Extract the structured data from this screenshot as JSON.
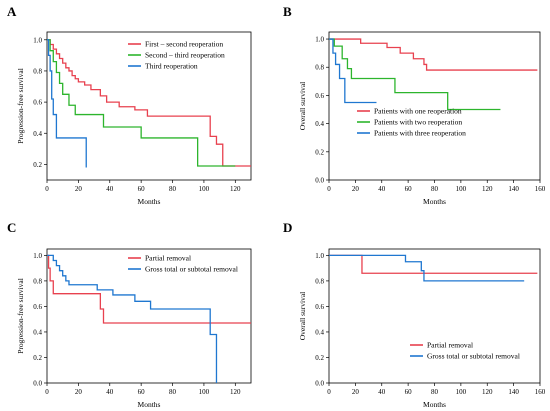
{
  "chart_data": [
    {
      "panel": "A",
      "type": "line",
      "xlabel": "Months",
      "ylabel": "Progression-free survival",
      "xlim": [
        0,
        130
      ],
      "ylim": [
        0.1,
        1.05
      ],
      "xticks": [
        0,
        20,
        40,
        60,
        80,
        100,
        120
      ],
      "yticks": [
        0.2,
        0.4,
        0.6,
        0.8,
        1.0
      ],
      "ytick_labels": [
        "0.2",
        "0.4",
        "0.6",
        "0.8",
        "1.0"
      ],
      "legend": "top-right",
      "series": [
        {
          "name": "First – second reoperation",
          "color": "#e8414f",
          "x": [
            0,
            2,
            4,
            6,
            8,
            10,
            12,
            14,
            16,
            18,
            20,
            24,
            28,
            34,
            38,
            46,
            56,
            64,
            104,
            108,
            112,
            130
          ],
          "y": [
            1.0,
            0.97,
            0.94,
            0.91,
            0.88,
            0.85,
            0.82,
            0.8,
            0.77,
            0.75,
            0.73,
            0.71,
            0.68,
            0.64,
            0.6,
            0.57,
            0.55,
            0.51,
            0.38,
            0.33,
            0.19,
            0.19
          ]
        },
        {
          "name": "Second – third reoperation",
          "color": "#2db52d",
          "x": [
            0,
            2,
            4,
            6,
            8,
            10,
            14,
            18,
            36,
            60,
            96,
            120
          ],
          "y": [
            1.0,
            0.93,
            0.86,
            0.79,
            0.72,
            0.65,
            0.58,
            0.52,
            0.44,
            0.37,
            0.19,
            0.19
          ]
        },
        {
          "name": "Third  reoperation",
          "color": "#1f77d0",
          "x": [
            0,
            1,
            2,
            3,
            4,
            6,
            25
          ],
          "y": [
            1.0,
            0.9,
            0.8,
            0.62,
            0.52,
            0.37,
            0.18
          ]
        }
      ]
    },
    {
      "panel": "B",
      "type": "line",
      "xlabel": "Months",
      "ylabel": "Overall survival",
      "xlim": [
        0,
        160
      ],
      "ylim": [
        0,
        1.05
      ],
      "xticks": [
        0,
        20,
        40,
        60,
        80,
        100,
        120,
        140,
        160
      ],
      "yticks": [
        0,
        0.2,
        0.4,
        0.6,
        0.8,
        1.0
      ],
      "ytick_labels": [
        "0.0",
        "0.2",
        "0.4",
        "0.6",
        "0.8",
        "1.0"
      ],
      "legend": "bottom-right",
      "series": [
        {
          "name": "Patients with one reoperation",
          "color": "#e8414f",
          "x": [
            0,
            24,
            44,
            54,
            64,
            72,
            74,
            158
          ],
          "y": [
            1.0,
            0.97,
            0.94,
            0.9,
            0.86,
            0.82,
            0.78,
            0.78
          ]
        },
        {
          "name": "Patients with two reoperation",
          "color": "#2db52d",
          "x": [
            0,
            4,
            10,
            14,
            17,
            50,
            90,
            130
          ],
          "y": [
            1.0,
            0.95,
            0.86,
            0.79,
            0.72,
            0.62,
            0.5,
            0.5
          ]
        },
        {
          "name": "Patients with three reoperation",
          "color": "#1f77d0",
          "x": [
            0,
            3,
            5,
            8,
            12,
            36
          ],
          "y": [
            1.0,
            0.9,
            0.82,
            0.72,
            0.55,
            0.55
          ]
        }
      ]
    },
    {
      "panel": "C",
      "type": "line",
      "xlabel": "Months",
      "ylabel": "Progression-free survival",
      "xlim": [
        0,
        130
      ],
      "ylim": [
        0,
        1.05
      ],
      "xticks": [
        0,
        20,
        40,
        60,
        80,
        100,
        120
      ],
      "yticks": [
        0,
        0.2,
        0.4,
        0.6,
        0.8,
        1.0
      ],
      "ytick_labels": [
        "0.0",
        "0.2",
        "0.4",
        "0.6",
        "0.8",
        "1.0"
      ],
      "legend": "top-right",
      "series": [
        {
          "name": "Partial removal",
          "color": "#e8414f",
          "x": [
            0,
            1,
            2,
            4,
            34,
            36,
            130
          ],
          "y": [
            1.0,
            0.9,
            0.8,
            0.7,
            0.58,
            0.47,
            0.47
          ]
        },
        {
          "name": "Gross total or subtotal removal",
          "color": "#1f77d0",
          "x": [
            0,
            4,
            6,
            8,
            10,
            12,
            14,
            32,
            42,
            56,
            66,
            104,
            108
          ],
          "y": [
            1.0,
            0.96,
            0.92,
            0.88,
            0.84,
            0.8,
            0.77,
            0.73,
            0.69,
            0.64,
            0.58,
            0.38,
            0.0
          ]
        }
      ]
    },
    {
      "panel": "D",
      "type": "line",
      "xlabel": "Months",
      "ylabel": "Overall survival",
      "xlim": [
        0,
        160
      ],
      "ylim": [
        0,
        1.05
      ],
      "xticks": [
        0,
        20,
        40,
        60,
        80,
        100,
        120,
        140,
        160
      ],
      "yticks": [
        0,
        0.2,
        0.4,
        0.6,
        0.8,
        1.0
      ],
      "ytick_labels": [
        "0.0",
        "0.2",
        "0.4",
        "0.6",
        "0.8",
        "1.0"
      ],
      "legend": "bottom-right",
      "series": [
        {
          "name": "Partial removal",
          "color": "#e8414f",
          "x": [
            0,
            25,
            158
          ],
          "y": [
            1.0,
            0.86,
            0.86
          ]
        },
        {
          "name": "Gross total or subtotal removal",
          "color": "#1f77d0",
          "x": [
            0,
            58,
            70,
            72,
            148
          ],
          "y": [
            1.0,
            0.95,
            0.88,
            0.8,
            0.8
          ]
        }
      ]
    }
  ]
}
